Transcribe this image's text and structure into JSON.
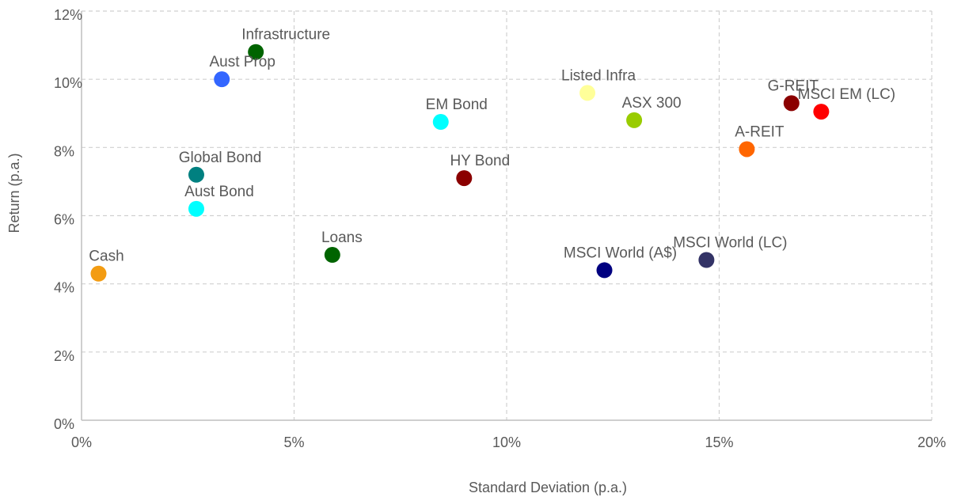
{
  "chart_data": {
    "type": "scatter",
    "xlabel": "Standard Deviation (p.a.)",
    "ylabel": "Return (p.a.)",
    "xlim": [
      0,
      20
    ],
    "ylim": [
      0,
      12
    ],
    "x_ticks": [
      0,
      5,
      10,
      15,
      20
    ],
    "x_tick_labels": [
      "0%",
      "5%",
      "10%",
      "15%",
      "20%"
    ],
    "y_ticks": [
      0,
      2,
      4,
      6,
      8,
      10,
      12
    ],
    "y_tick_labels": [
      "0%",
      "2%",
      "4%",
      "6%",
      "8%",
      "10%",
      "12%"
    ],
    "grid": true,
    "points": [
      {
        "label": "Cash",
        "x": 0.4,
        "y": 4.3,
        "color": "#f39c12"
      },
      {
        "label": "Aust Bond",
        "x": 2.7,
        "y": 6.2,
        "color": "#00ffff"
      },
      {
        "label": "Global Bond",
        "x": 2.7,
        "y": 7.2,
        "color": "#008080"
      },
      {
        "label": "Aust Prop",
        "x": 3.3,
        "y": 10.0,
        "color": "#3366ff"
      },
      {
        "label": "Infrastructure",
        "x": 4.1,
        "y": 10.8,
        "color": "#006400"
      },
      {
        "label": "Loans",
        "x": 5.9,
        "y": 4.85,
        "color": "#006400"
      },
      {
        "label": "EM Bond",
        "x": 8.45,
        "y": 8.75,
        "color": "#00ffff"
      },
      {
        "label": "HY Bond",
        "x": 9.0,
        "y": 7.1,
        "color": "#8b0000"
      },
      {
        "label": "Listed Infra",
        "x": 11.9,
        "y": 9.6,
        "color": "#ffff99"
      },
      {
        "label": "ASX 300",
        "x": 13.0,
        "y": 8.8,
        "color": "#99cc00"
      },
      {
        "label": "MSCI World (A$)",
        "x": 12.3,
        "y": 4.4,
        "color": "#000080"
      },
      {
        "label": "MSCI World (LC)",
        "x": 14.7,
        "y": 4.7,
        "color": "#333366"
      },
      {
        "label": "A-REIT",
        "x": 15.65,
        "y": 7.95,
        "color": "#ff6600"
      },
      {
        "label": "G-REIT",
        "x": 16.7,
        "y": 9.3,
        "color": "#8b0000"
      },
      {
        "label": "MSCI EM (LC)",
        "x": 17.4,
        "y": 9.05,
        "color": "#ff0000"
      }
    ]
  }
}
